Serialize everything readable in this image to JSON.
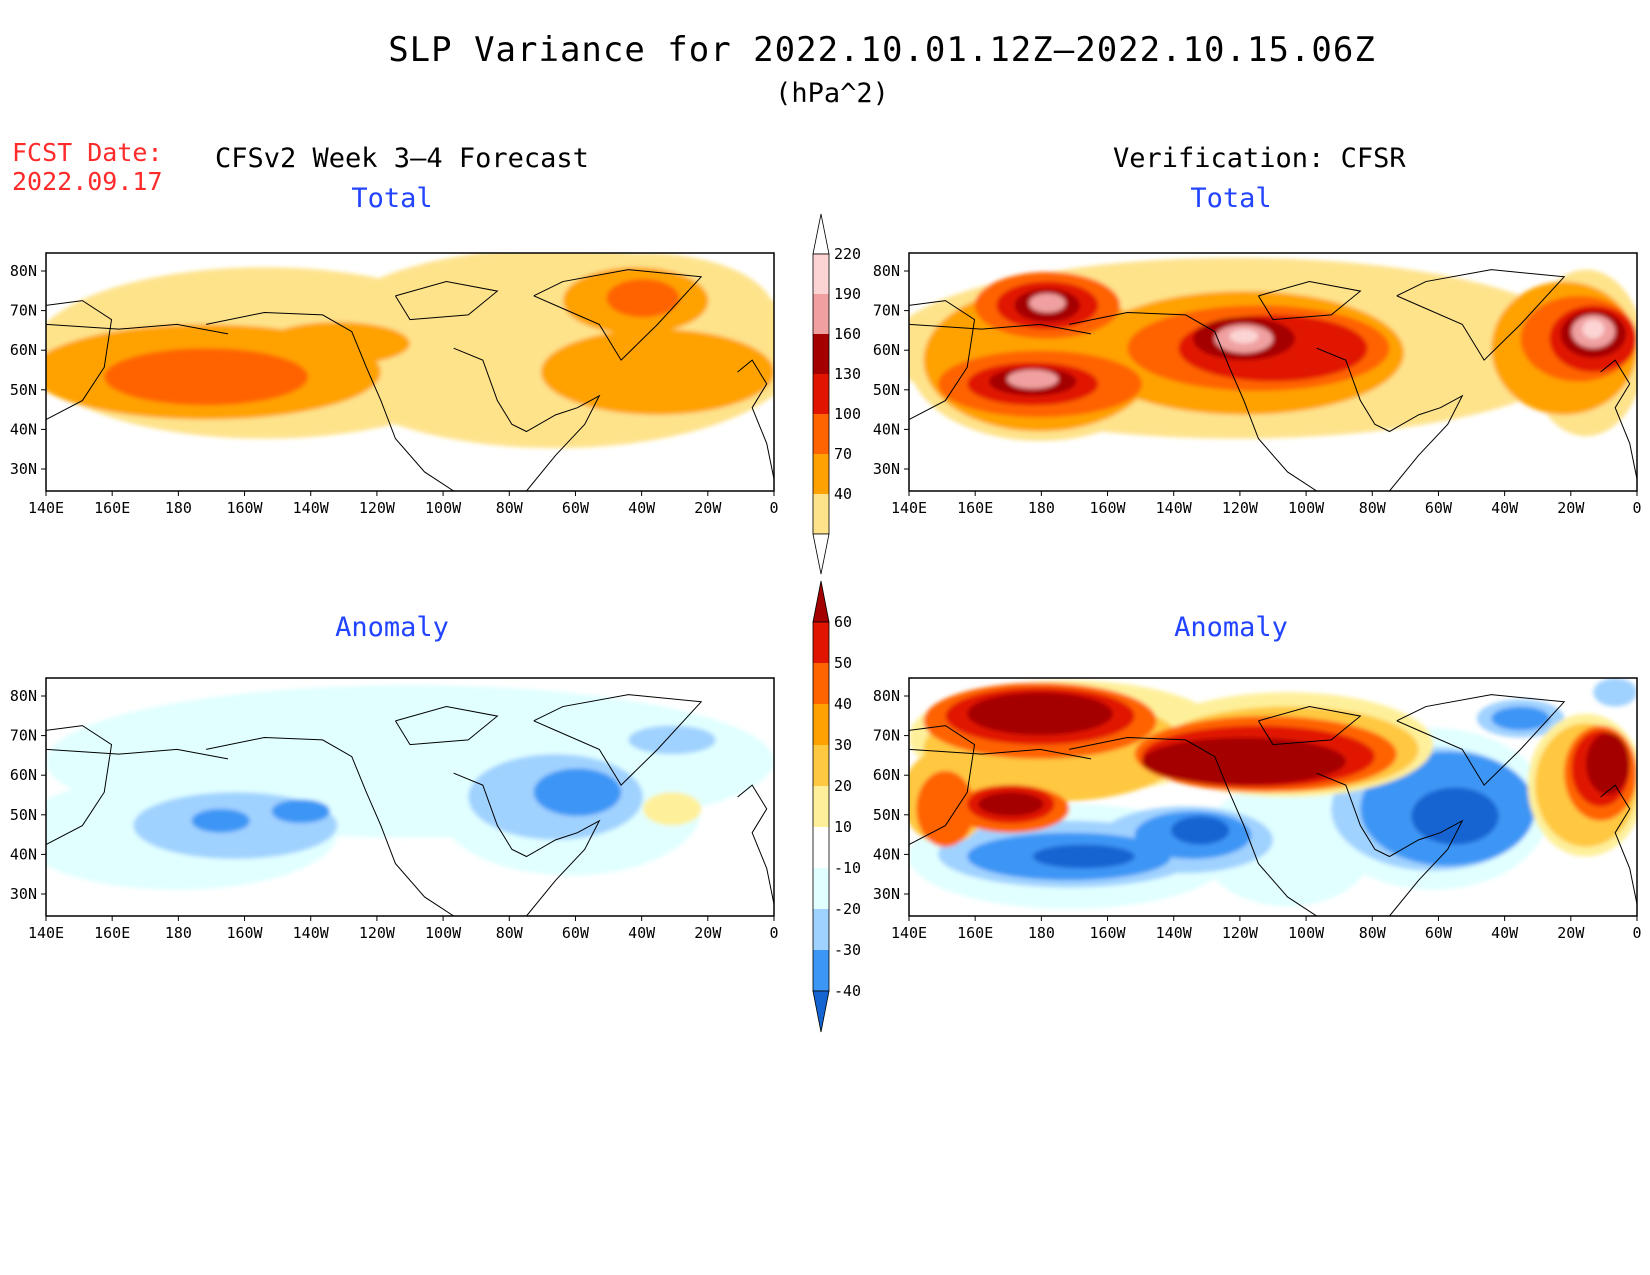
{
  "title": "SLP Variance for 2022.10.01.12Z–2022.10.15.06Z",
  "units": "(hPa^2)",
  "fcst_label": "FCST Date:",
  "fcst_date": "2022.09.17",
  "model_label": "CFSv2 Week 3–4 Forecast",
  "verification_label": "Verification: CFSR",
  "panels": [
    {
      "title": "Total"
    },
    {
      "title": "Total"
    },
    {
      "title": "Anomaly"
    },
    {
      "title": "Anomaly"
    }
  ],
  "map_axes": {
    "lon_ticks": [
      "140E",
      "160E",
      "180",
      "160W",
      "140W",
      "120W",
      "100W",
      "80W",
      "60W",
      "40W",
      "20W",
      "0"
    ],
    "lat_ticks": [
      "80N",
      "70N",
      "60N",
      "50N",
      "40N",
      "30N"
    ]
  },
  "colorbars": {
    "total": {
      "levels": [
        "40",
        "70",
        "100",
        "130",
        "160",
        "190",
        "220"
      ],
      "colors": [
        "#ffffff",
        "#fee38b",
        "#ffa201",
        "#ff6400",
        "#e11400",
        "#a50000",
        "#f0a0a0",
        "#fcd4d4",
        "#ffffff"
      ]
    },
    "anomaly": {
      "levels": [
        "60",
        "50",
        "40",
        "30",
        "20",
        "10",
        "-10",
        "-20",
        "-30",
        "-40"
      ],
      "colors": [
        "#a50000",
        "#e11400",
        "#ff6400",
        "#ffa201",
        "#ffc841",
        "#fef09a",
        "#ffffff",
        "#e1ffff",
        "#a0d2ff",
        "#3c96f5",
        "#1464d2"
      ]
    }
  },
  "field_colors": {
    "light_yellow": "#fee38b",
    "orange": "#ffa201",
    "dark_orange": "#ff6400",
    "red": "#e11400",
    "dark_red": "#a50000",
    "pink": "#f0a0a0",
    "light_pink": "#fcd4d4",
    "pale_yellow": "#fef09a",
    "light_orange": "#ffc841",
    "pale_cyan": "#e1ffff",
    "light_blue": "#a0d2ff",
    "blue": "#3c96f5",
    "dark_blue": "#1464d2"
  }
}
